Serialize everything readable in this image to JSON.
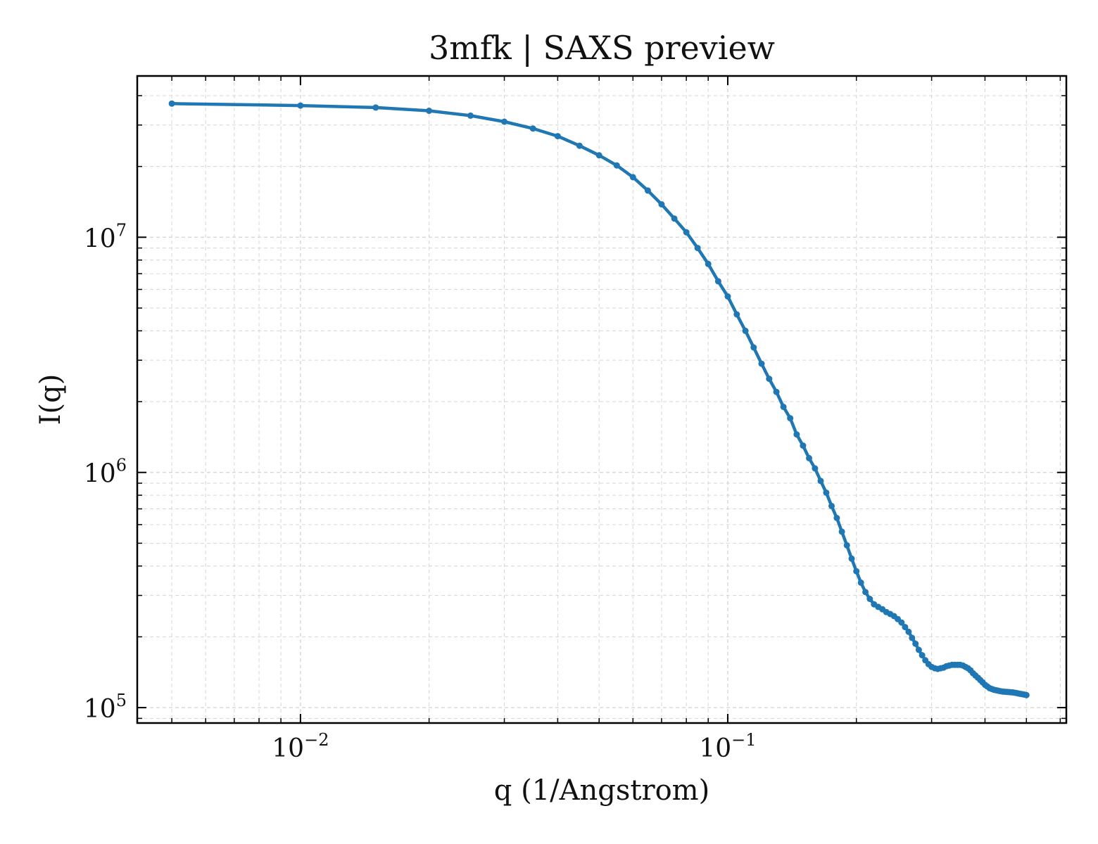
{
  "chart_data": {
    "type": "line",
    "title": "3mfk | SAXS preview",
    "xlabel": "q (1/Angstrom)",
    "ylabel": "I(q)",
    "xscale": "log",
    "yscale": "log",
    "xlim": [
      0.00415,
      0.62
    ],
    "ylim": [
      86000,
      48500000
    ],
    "grid": true,
    "line_color": "#1f77b4",
    "x_ticks": [
      {
        "base": "10",
        "exp": "−2"
      },
      {
        "base": "10",
        "exp": "−1"
      }
    ],
    "y_ticks": [
      {
        "base": "10",
        "exp": "7"
      },
      {
        "base": "10",
        "exp": "6"
      },
      {
        "base": "10",
        "exp": "5"
      }
    ],
    "series": [
      {
        "x": [
          0.005,
          0.01,
          0.015,
          0.02,
          0.025,
          0.03,
          0.035,
          0.04,
          0.045,
          0.05,
          0.055,
          0.06,
          0.065,
          0.07,
          0.075,
          0.08,
          0.085,
          0.09,
          0.095,
          0.1,
          0.105,
          0.11,
          0.115,
          0.12,
          0.125,
          0.13,
          0.135,
          0.14,
          0.145,
          0.15,
          0.155,
          0.16,
          0.165,
          0.17,
          0.175,
          0.18,
          0.185,
          0.19,
          0.195,
          0.2,
          0.205,
          0.21,
          0.215,
          0.22,
          0.225,
          0.23,
          0.235,
          0.24,
          0.245,
          0.25,
          0.255,
          0.26,
          0.265,
          0.27,
          0.275,
          0.28,
          0.285,
          0.29,
          0.295,
          0.3,
          0.305,
          0.31,
          0.315,
          0.32,
          0.325,
          0.33,
          0.335,
          0.34,
          0.345,
          0.35,
          0.355,
          0.36,
          0.365,
          0.37,
          0.375,
          0.38,
          0.385,
          0.39,
          0.395,
          0.4,
          0.405,
          0.41,
          0.415,
          0.42,
          0.425,
          0.43,
          0.435,
          0.44,
          0.445,
          0.45,
          0.455,
          0.46,
          0.465,
          0.47,
          0.475,
          0.48,
          0.485,
          0.49,
          0.495,
          0.5
        ],
        "y": [
          37000000,
          36300000,
          35600000,
          34500000,
          32900000,
          31000000,
          29000000,
          26900000,
          24500000,
          22300000,
          20200000,
          18000000,
          15800000,
          13800000,
          12000000,
          10500000,
          9000000,
          7700000,
          6500000,
          5600000,
          4700000,
          4000000,
          3400000,
          2900000,
          2500000,
          2200000,
          1900000,
          1700000,
          1450000,
          1300000,
          1150000,
          1040000,
          920000,
          820000,
          720000,
          640000,
          560000,
          490000,
          430000,
          380000,
          340000,
          310000,
          290000,
          275000,
          268000,
          262000,
          255000,
          250000,
          245000,
          238000,
          230000,
          220000,
          210000,
          198000,
          187000,
          176000,
          167000,
          159000,
          153000,
          149000,
          147000,
          146000,
          147000,
          148000,
          150000,
          151000,
          152000,
          152000,
          152000,
          152000,
          151000,
          149000,
          147000,
          144000,
          140000,
          137000,
          134000,
          131000,
          128000,
          125000,
          123000,
          121000,
          120000,
          119000,
          118500,
          118000,
          117500,
          117000,
          116800,
          116600,
          116400,
          116200,
          116000,
          115600,
          115200,
          114800,
          114400,
          114000,
          113600,
          113000
        ]
      }
    ]
  }
}
